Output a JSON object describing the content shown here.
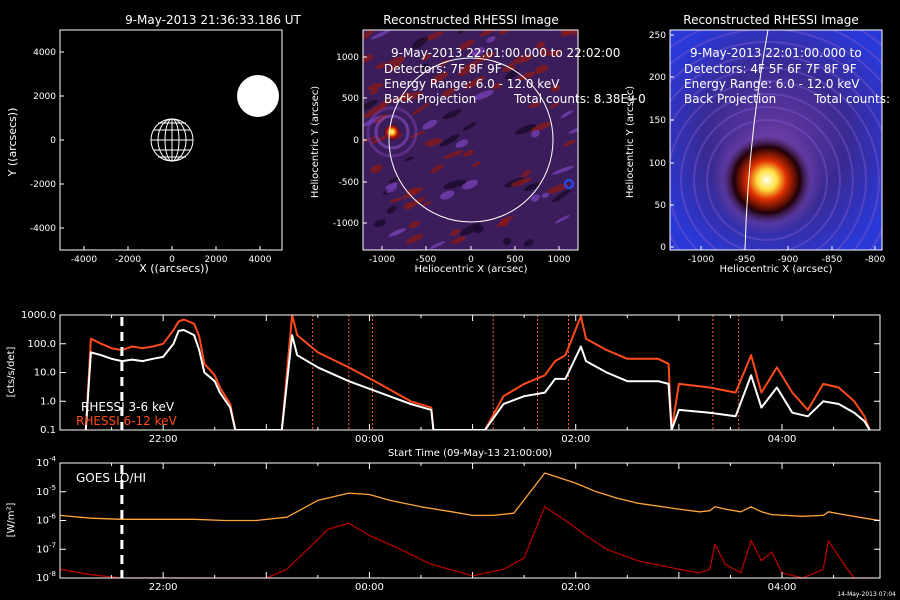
{
  "colors": {
    "background": "#000000",
    "foreground": "#ffffff",
    "rhessi_high": "#ff4a1c",
    "goes_lo": "#ffa43a",
    "goes_hi": "#b40000",
    "flag_lines": "#ff5a2a"
  },
  "panels": {
    "sun_map": {
      "title": "9-May-2013 21:36:33.186 UT",
      "xlabel": "X ((arcsecs))",
      "ylabel": "Y ((arcsecs))",
      "xticks": [
        "-4000",
        "-2000",
        "0",
        "2000",
        "4000"
      ],
      "yticks": [
        "4000",
        "2000",
        "0",
        "-2000",
        "-4000"
      ]
    },
    "image1": {
      "title": "Reconstructed RHESSI Image",
      "lines": [
        "9-May-2013 22:01:00.000 to 22:02:00",
        "Detectors: 7F 8F 9F",
        "Energy Range: 6.0 - 12.0 keV",
        "Back Projection"
      ],
      "counts": "Total counts: 8.38E+0",
      "xlabel": "Heliocentric X (arcsec)",
      "ylabel": "Heliocentric Y (arcsec)",
      "xticks": [
        "-1000",
        "-500",
        "0",
        "500",
        "1000"
      ],
      "yticks": [
        "1000",
        "500",
        "0",
        "-500",
        "-1000"
      ]
    },
    "image2": {
      "title": "Reconstructed RHESSI Image",
      "lines": [
        "9-May-2013 22:01:00.000 to",
        "Detectors: 4F 5F 6F 7F 8F 9F",
        "Energy Range: 6.0 - 12.0 keV",
        "Back Projection"
      ],
      "counts": "Total counts:",
      "xlabel": "Heliocentric X (arcsec)",
      "ylabel": "Heliocentric Y (arcsec)",
      "xticks": [
        "-1000",
        "-950",
        "-900",
        "-850",
        "-800"
      ],
      "yticks": [
        "250",
        "200",
        "150",
        "100",
        "50",
        "0"
      ]
    },
    "rhessi_lc": {
      "ylabel": "[cts/s/det]",
      "yticks": [
        "1000.0",
        "100.0",
        "10.0",
        "1.0",
        "0.1"
      ],
      "xticks": [
        "22:00",
        "00:00",
        "02:00",
        "04:00"
      ],
      "xlabel": "Start Time (09-May-13 21:00:00)",
      "legend": [
        "RHESSI 3-6 keV",
        "RHESSI 6-12 keV"
      ]
    },
    "goes_lc": {
      "ylabel": "[W/m²]",
      "ytick_exps": [
        "-4",
        "-5",
        "-6",
        "-7",
        "-8"
      ],
      "xticks": [
        "22:00",
        "00:00",
        "02:00",
        "04:00"
      ],
      "legend": "GOES LO/HI",
      "stamp": "14-May-2013 07:04"
    }
  },
  "chart_data": [
    {
      "type": "line",
      "name": "rhessi",
      "x_unit": "hours after 21:00 UT",
      "xlim": [
        0,
        7.95
      ],
      "ylim": [
        0.1,
        1000
      ],
      "yscale": "log",
      "marker_time": 0.6,
      "flag_times": [
        2.45,
        2.8,
        3.03,
        4.2,
        4.63,
        4.93,
        6.33,
        6.58
      ],
      "series": [
        {
          "name": "RHESSI 3-6 keV",
          "x": [
            0.25,
            0.3,
            0.4,
            0.5,
            0.6,
            0.7,
            0.8,
            0.9,
            1.0,
            1.1,
            1.15,
            1.2,
            1.3,
            1.35,
            1.4,
            1.5,
            1.55,
            1.65,
            1.7,
            2.15,
            2.25,
            2.3,
            2.5,
            2.8,
            3.1,
            3.4,
            3.6,
            3.62,
            4.12,
            4.3,
            4.5,
            4.7,
            4.8,
            4.9,
            5.05,
            5.1,
            5.3,
            5.5,
            5.8,
            5.9,
            5.93,
            6.0,
            6.3,
            6.55,
            6.7,
            6.8,
            6.95,
            7.1,
            7.25,
            7.4,
            7.55,
            7.7,
            7.8,
            7.85
          ],
          "y": [
            0.1,
            50,
            40,
            30,
            25,
            28,
            25,
            30,
            35,
            100,
            280,
            300,
            200,
            60,
            10,
            5,
            2,
            0.6,
            0.1,
            0.1,
            200,
            40,
            15,
            5,
            2,
            0.8,
            0.5,
            0.1,
            0.1,
            0.8,
            1.5,
            2,
            6,
            6,
            80,
            25,
            10,
            5,
            5,
            4,
            0.1,
            0.5,
            0.4,
            0.3,
            8,
            0.6,
            3,
            0.4,
            0.3,
            1,
            0.8,
            0.4,
            0.2,
            0.1
          ]
        },
        {
          "name": "RHESSI 6-12 keV",
          "x": [
            0.25,
            0.3,
            0.4,
            0.5,
            0.6,
            0.7,
            0.8,
            0.9,
            1.0,
            1.1,
            1.15,
            1.2,
            1.3,
            1.35,
            1.4,
            1.5,
            1.55,
            1.65,
            1.7,
            2.15,
            2.25,
            2.3,
            2.5,
            2.8,
            3.1,
            3.4,
            3.6,
            3.62,
            4.12,
            4.3,
            4.5,
            4.7,
            4.8,
            4.9,
            5.05,
            5.1,
            5.3,
            5.5,
            5.8,
            5.9,
            5.93,
            6.0,
            6.3,
            6.55,
            6.7,
            6.8,
            6.95,
            7.1,
            7.25,
            7.4,
            7.55,
            7.7,
            7.8,
            7.85
          ],
          "y": [
            0.1,
            150,
            100,
            70,
            60,
            80,
            70,
            80,
            100,
            300,
            600,
            700,
            500,
            180,
            20,
            8,
            3,
            0.8,
            0.1,
            0.1,
            1000,
            200,
            50,
            15,
            4,
            1,
            0.6,
            0.1,
            0.1,
            1.5,
            4,
            8,
            25,
            40,
            900,
            150,
            60,
            30,
            30,
            20,
            0.1,
            4,
            3,
            2,
            40,
            2,
            15,
            2,
            0.5,
            4,
            3,
            1,
            0.3,
            0.1
          ]
        }
      ]
    },
    {
      "type": "line",
      "name": "goes",
      "x_unit": "hours after 21:00 UT",
      "xlim": [
        0,
        7.95
      ],
      "ylim": [
        1e-08,
        0.0001
      ],
      "yscale": "log",
      "marker_time": 0.6,
      "series": [
        {
          "name": "GOES LO",
          "x": [
            0,
            0.3,
            0.6,
            1.0,
            1.3,
            1.6,
            1.9,
            2.2,
            2.5,
            2.8,
            3.0,
            3.2,
            3.5,
            3.8,
            4.0,
            4.2,
            4.4,
            4.7,
            5.0,
            5.2,
            5.4,
            5.6,
            6.0,
            6.2,
            6.3,
            6.35,
            6.45,
            6.6,
            6.7,
            6.8,
            6.9,
            7.2,
            7.4,
            7.45,
            7.6,
            7.8,
            7.95
          ],
          "y": [
            1.5e-06,
            1.2e-06,
            1.1e-06,
            1.1e-06,
            1.1e-06,
            1e-06,
            1e-06,
            1.3e-06,
            5e-06,
            9e-06,
            8e-06,
            5e-06,
            3e-06,
            2e-06,
            1.5e-06,
            1.5e-06,
            1.8e-06,
            4.5e-05,
            2e-05,
            1e-05,
            6e-06,
            4e-06,
            2.5e-06,
            2e-06,
            2.2e-06,
            3e-06,
            2.5e-06,
            2e-06,
            3e-06,
            2e-06,
            1.6e-06,
            1.4e-06,
            1.5e-06,
            2e-06,
            1.6e-06,
            1.2e-06,
            1e-06
          ]
        },
        {
          "name": "GOES HI",
          "x": [
            0,
            0.3,
            0.6,
            1.0,
            1.3,
            1.6,
            2.0,
            2.2,
            2.4,
            2.6,
            2.8,
            3.0,
            3.3,
            3.6,
            4.0,
            4.3,
            4.5,
            4.7,
            4.9,
            5.1,
            5.3,
            5.6,
            6.0,
            6.2,
            6.3,
            6.35,
            6.45,
            6.6,
            6.7,
            6.8,
            6.9,
            7.0,
            7.2,
            7.4,
            7.45,
            7.6,
            7.7,
            7.9
          ],
          "y": [
            2e-08,
            1.3e-08,
            1e-08,
            1e-08,
            1e-08,
            1e-08,
            1e-08,
            2e-08,
            1e-07,
            5e-07,
            8e-07,
            3e-07,
            1e-07,
            3e-08,
            1.2e-08,
            2e-08,
            5e-08,
            3e-06,
            1e-06,
            3e-07,
            1e-07,
            4e-08,
            2e-08,
            1.5e-08,
            2e-08,
            1.5e-07,
            3e-08,
            1.5e-08,
            2e-07,
            4e-08,
            8e-08,
            1.5e-08,
            1e-08,
            2e-08,
            2e-07,
            3e-08,
            1e-08,
            1e-08
          ]
        }
      ]
    }
  ]
}
